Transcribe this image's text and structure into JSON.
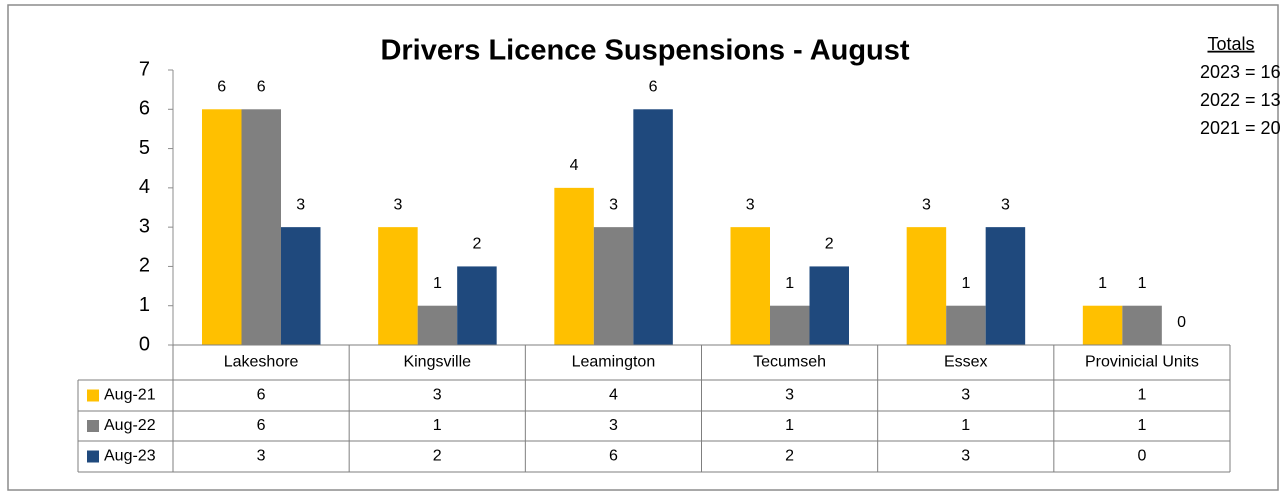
{
  "chart_data": {
    "type": "bar",
    "title": "Drivers Licence Suspensions - August",
    "categories": [
      "Lakeshore",
      "Kingsville",
      "Leamington",
      "Tecumseh",
      "Essex",
      "Provinicial Units"
    ],
    "series": [
      {
        "name": "Aug-21",
        "color": "#ffc000",
        "values": [
          6,
          3,
          4,
          3,
          3,
          1
        ]
      },
      {
        "name": "Aug-22",
        "color": "#808080",
        "values": [
          6,
          1,
          3,
          1,
          1,
          1
        ]
      },
      {
        "name": "Aug-23",
        "color": "#1f497d",
        "values": [
          3,
          2,
          6,
          2,
          3,
          0
        ]
      }
    ],
    "ylim": [
      0,
      7
    ],
    "yticks": [
      0,
      1,
      2,
      3,
      4,
      5,
      6,
      7
    ],
    "grid": false,
    "annotations": [
      "Totals",
      "2023 = 16",
      "2022 = 13",
      "2021 = 20"
    ]
  }
}
